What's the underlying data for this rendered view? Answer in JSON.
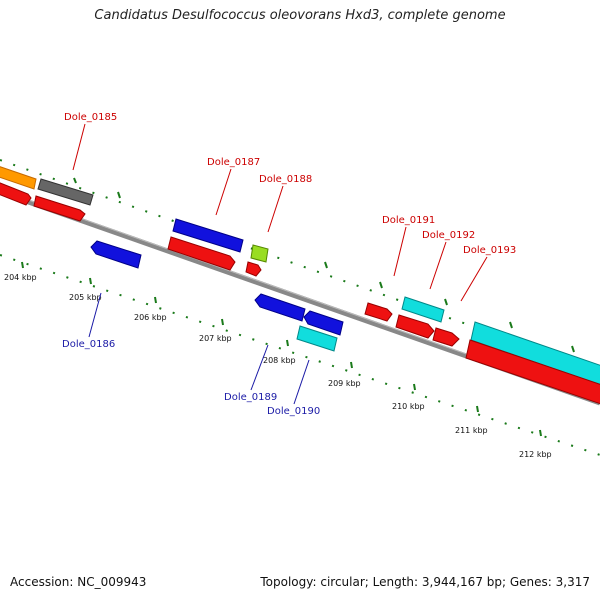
{
  "title": "Candidatus Desulfococcus oleovorans Hxd3, complete genome",
  "footer": {
    "accession": "Accession: NC_009943",
    "summary": "Topology: circular; Length: 3,944,167 bp; Genes: 3,317"
  },
  "colors": {
    "label_forward": "#cc0000",
    "label_reverse": "#1a1aa6",
    "tick": "#1a7a1a",
    "backbone": "#888888"
  },
  "tick_labels": [
    "204 kbp",
    "205 kbp",
    "206 kbp",
    "207 kbp",
    "208 kbp",
    "209 kbp",
    "210 kbp",
    "211 kbp",
    "212 kbp"
  ],
  "gene_labels": [
    {
      "id": "Dole_0185",
      "strand": "forward"
    },
    {
      "id": "Dole_0186",
      "strand": "reverse"
    },
    {
      "id": "Dole_0187",
      "strand": "forward"
    },
    {
      "id": "Dole_0188",
      "strand": "forward"
    },
    {
      "id": "Dole_0189",
      "strand": "reverse"
    },
    {
      "id": "Dole_0190",
      "strand": "reverse"
    },
    {
      "id": "Dole_0191",
      "strand": "forward"
    },
    {
      "id": "Dole_0192",
      "strand": "forward"
    },
    {
      "id": "Dole_0193",
      "strand": "forward"
    }
  ]
}
